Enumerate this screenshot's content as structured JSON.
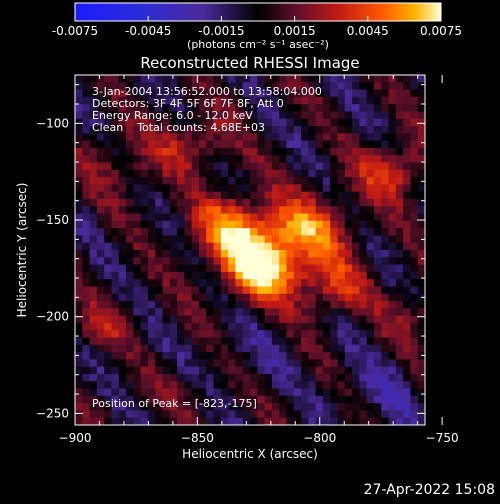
{
  "chart_data": {
    "type": "heatmap",
    "title": "Reconstructed RHESSI Image",
    "xlabel": "Heliocentric X (arcsec)",
    "ylabel": "Heliocentric Y (arcsec)",
    "xlim": [
      -900,
      -757
    ],
    "ylim": [
      -256,
      -75
    ],
    "xticks": [
      -900,
      -850,
      -800,
      -750
    ],
    "yticks": [
      -100,
      -150,
      -200,
      -250
    ],
    "colorbar": {
      "min": -0.0075,
      "max": 0.0075,
      "ticks": [
        "-0.0075",
        "-0.0045",
        "-0.0015",
        "0.0015",
        "0.0045",
        "0.0075"
      ],
      "unit_label": "(photons cm⁻² s⁻¹ asec⁻²)"
    },
    "annotations": [
      "3-Jan-2004 13:56:52.000 to 13:58:04.000",
      "Detectors: 3F 4F 5F 6F 7F 8F, Att 0",
      "Energy Range: 6.0 - 12.0 keV",
      "Clean    Total counts: 4.68E+03"
    ],
    "peak_label": "Position of Peak = [-823,-175]",
    "peak": [
      -823,
      -175
    ],
    "sources": [
      {
        "x": -823,
        "y": -175,
        "amplitude": 0.0075,
        "sigma": 11
      },
      {
        "x": -835,
        "y": -155,
        "amplitude": 0.0055,
        "sigma": 12
      },
      {
        "x": -805,
        "y": -155,
        "amplitude": 0.0048,
        "sigma": 12
      },
      {
        "x": -770,
        "y": -125,
        "amplitude": 0.004,
        "sigma": 10
      },
      {
        "x": -850,
        "y": -110,
        "amplitude": 0.003,
        "sigma": 10
      },
      {
        "x": -795,
        "y": -185,
        "amplitude": 0.0035,
        "sigma": 10
      },
      {
        "x": -880,
        "y": -120,
        "amplitude": 0.002,
        "sigma": 12
      },
      {
        "x": -890,
        "y": -205,
        "amplitude": 0.0025,
        "sigma": 8
      },
      {
        "x": -760,
        "y": -200,
        "amplitude": 0.0022,
        "sigma": 10
      },
      {
        "x": -855,
        "y": -240,
        "amplitude": 0.0012,
        "sigma": 8
      },
      {
        "x": -775,
        "y": -240,
        "amplitude": -0.0015,
        "sigma": 14
      },
      {
        "x": -830,
        "y": -220,
        "amplitude": -0.001,
        "sigma": 12
      }
    ]
  },
  "timestamp": "27-Apr-2022 15:08"
}
